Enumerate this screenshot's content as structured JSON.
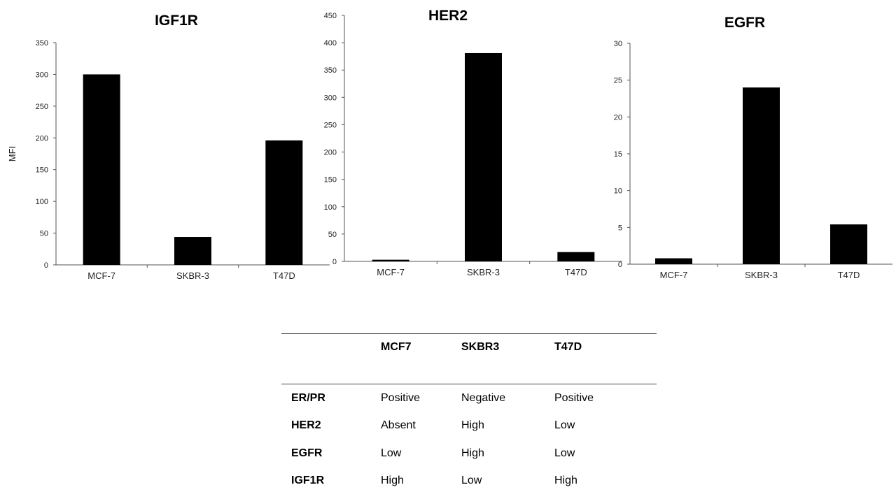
{
  "figure": {
    "y_axis_title": "MFI"
  },
  "chart_data": [
    {
      "type": "bar",
      "title": "IGF1R",
      "categories": [
        "MCF-7",
        "SKBR-3",
        "T47D"
      ],
      "values": [
        300,
        44,
        196
      ],
      "ylabel": "MFI",
      "ylim": [
        0,
        350
      ],
      "yticks": [
        0,
        50,
        100,
        150,
        200,
        250,
        300,
        350
      ],
      "bar_color": "#000000",
      "grid": false,
      "legend": "none"
    },
    {
      "type": "bar",
      "title": "HER2",
      "categories": [
        "MCF-7",
        "SKBR-3",
        "T47D"
      ],
      "values": [
        3,
        381,
        17
      ],
      "ylabel": "",
      "ylim": [
        0,
        450
      ],
      "yticks": [
        0,
        50,
        100,
        150,
        200,
        250,
        300,
        350,
        400,
        450
      ],
      "bar_color": "#000000",
      "grid": false,
      "legend": "none"
    },
    {
      "type": "bar",
      "title": "EGFR",
      "categories": [
        "MCF-7",
        "SKBR-3",
        "T47D"
      ],
      "values": [
        0.8,
        24,
        5.4
      ],
      "ylabel": "",
      "ylim": [
        0,
        30
      ],
      "yticks": [
        0,
        5,
        10,
        15,
        20,
        25,
        30
      ],
      "bar_color": "#000000",
      "grid": false,
      "legend": "none"
    }
  ],
  "table": {
    "corner": "",
    "columns": [
      "MCF7",
      "SKBR3",
      "T47D"
    ],
    "rows": [
      {
        "label": "ER/PR",
        "values": [
          "Positive",
          "Negative",
          "Positive"
        ]
      },
      {
        "label": "HER2",
        "values": [
          "Absent",
          "High",
          "Low"
        ]
      },
      {
        "label": "EGFR",
        "values": [
          "Low",
          "High",
          "Low"
        ]
      },
      {
        "label": "IGF1R",
        "values": [
          "High",
          "Low",
          "High"
        ]
      }
    ]
  }
}
